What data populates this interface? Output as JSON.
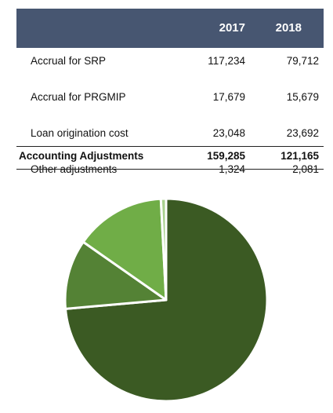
{
  "table": {
    "columns": [
      "2017",
      "2018"
    ],
    "rows": [
      {
        "label": "Accrual for SRP",
        "v2017": "117,234",
        "v2018": "79,712"
      },
      {
        "label": "Accrual for PRGMIP",
        "v2017": "17,679",
        "v2018": "15,679"
      },
      {
        "label": "Loan origination cost",
        "v2017": "23,048",
        "v2018": "23,692"
      },
      {
        "label": "Other adjustments",
        "v2017": "1,324",
        "v2018": "2,081"
      }
    ],
    "total": {
      "label": "Accounting Adjustments",
      "v2017": "159,285",
      "v2018": "121,165"
    },
    "header_color": "#475671"
  },
  "chart_data": {
    "type": "pie",
    "categories": [
      "Accrual for SRP",
      "Accrual for PRGMIP",
      "Loan origination cost",
      "Other adjustments"
    ],
    "values": [
      117234,
      17679,
      23048,
      1324
    ],
    "colors": [
      "#3b5a23",
      "#548235",
      "#70ad47",
      "#a9d18e"
    ],
    "start_angle_deg": 0,
    "direction": "clockwise",
    "slice_border_color": "#ffffff"
  }
}
